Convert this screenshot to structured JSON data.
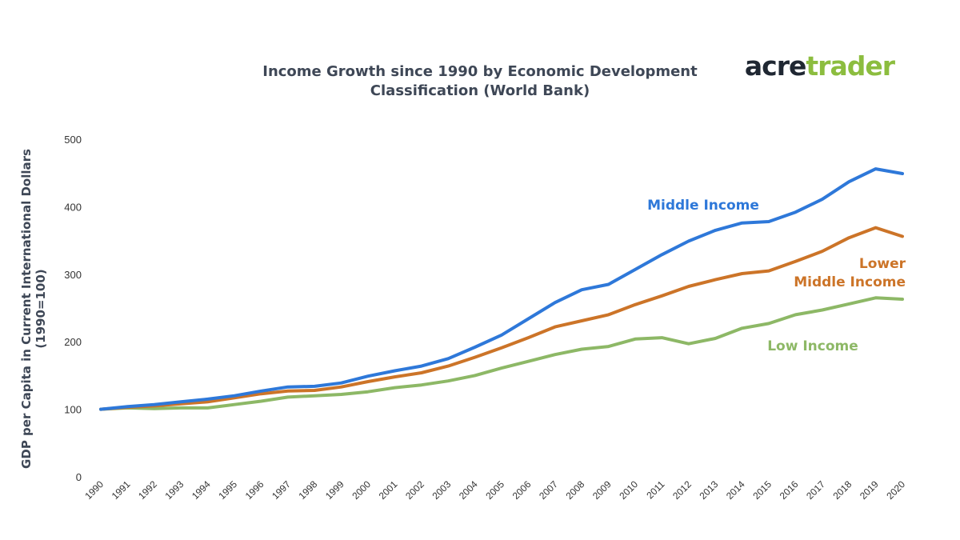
{
  "logo": {
    "part1": "acre",
    "part2": "trader",
    "color1": "#1f2732",
    "color2": "#8cbd3f"
  },
  "chart_data": {
    "type": "line",
    "title_lines": [
      "Income Growth since 1990 by Economic Development",
      "Classification (World Bank)"
    ],
    "ylabel_lines": [
      "GDP per Capita in Current International  Dollars",
      "(1990=100)"
    ],
    "xlabel": "",
    "ylim": [
      0,
      500
    ],
    "yticks": [
      0,
      100,
      200,
      300,
      400,
      500
    ],
    "grid": false,
    "legend": "inline labels",
    "x": [
      "1990",
      "1991",
      "1992",
      "1993",
      "1994",
      "1995",
      "1996",
      "1997",
      "1998",
      "1999",
      "2000",
      "2001",
      "2002",
      "2003",
      "2004",
      "2005",
      "2006",
      "2007",
      "2008",
      "2009",
      "2010",
      "2011",
      "2012",
      "2013",
      "2014",
      "2015",
      "2016",
      "2017",
      "2018",
      "2019",
      "2020"
    ],
    "series": [
      {
        "name": "Middle Income",
        "label_lines": [
          "Middle Income"
        ],
        "color": "#2e78d9",
        "values": [
          100,
          104,
          107,
          111,
          115,
          120,
          127,
          133,
          134,
          139,
          149,
          157,
          164,
          175,
          192,
          210,
          234,
          258,
          277,
          285,
          307,
          329,
          349,
          365,
          376,
          378,
          392,
          411,
          437,
          456,
          449
        ]
      },
      {
        "name": "Lower Middle Income",
        "label_lines": [
          "Lower",
          "Middle Income"
        ],
        "color": "#cc7428",
        "values": [
          100,
          103,
          105,
          108,
          111,
          117,
          123,
          127,
          128,
          133,
          141,
          148,
          154,
          164,
          177,
          191,
          206,
          222,
          231,
          240,
          255,
          268,
          282,
          292,
          301,
          305,
          319,
          334,
          354,
          369,
          356
        ]
      },
      {
        "name": "Low Income",
        "label_lines": [
          "Low Income"
        ],
        "color": "#8db866",
        "values": [
          100,
          102,
          101,
          102,
          102,
          107,
          112,
          118,
          120,
          122,
          126,
          132,
          136,
          142,
          150,
          161,
          171,
          181,
          189,
          193,
          204,
          206,
          197,
          205,
          220,
          227,
          240,
          247,
          256,
          265,
          263
        ]
      }
    ]
  }
}
